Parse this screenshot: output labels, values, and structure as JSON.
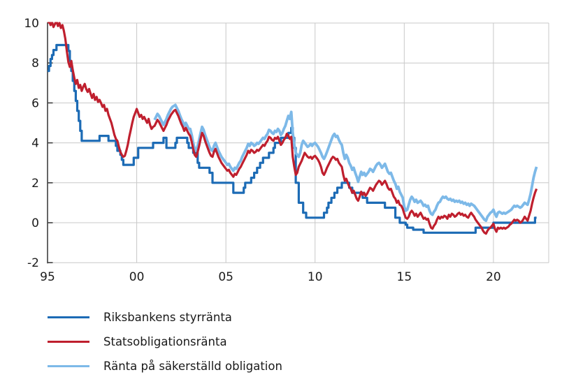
{
  "chart_data": {
    "type": "line",
    "title": "",
    "xlabel": "",
    "ylabel": "",
    "grid": true,
    "legend_position": "below-left",
    "background_color": "#ffffff",
    "grid_color": "#c8c8c8",
    "axis_color": "#404040",
    "label_color": "#1c1c1c",
    "ylim": [
      -2,
      10
    ],
    "xlim_years": [
      1995,
      2023.1
    ],
    "y_axis": {
      "ticks": [
        10,
        8,
        6,
        4,
        2,
        0,
        -2
      ],
      "tick_labels": [
        "10",
        "8",
        "6",
        "4",
        "2",
        "0",
        "-2"
      ]
    },
    "x_axis": {
      "tick_years": [
        1995,
        2000,
        2005,
        2010,
        2015,
        2020
      ],
      "tick_labels": [
        "95",
        "00",
        "05",
        "10",
        "15",
        "20"
      ],
      "grid_years": [
        2000,
        2005,
        2010,
        2015,
        2020
      ]
    },
    "x_unit": "year, monthly data points",
    "series": [
      {
        "name": "Riksbankens styrränta",
        "color": "#1c6bb5",
        "style": "step",
        "line_width": 3.2,
        "start_year": 1995.0,
        "step_years": 0.0833333,
        "values": [
          7.6,
          7.85,
          8.2,
          8.4,
          8.65,
          8.65,
          8.9,
          8.9,
          8.9,
          8.9,
          8.9,
          8.9,
          8.9,
          8.9,
          8.6,
          8.1,
          7.6,
          7.1,
          6.6,
          6.1,
          5.6,
          5.1,
          4.6,
          4.1,
          4.1,
          4.1,
          4.1,
          4.1,
          4.1,
          4.1,
          4.1,
          4.1,
          4.1,
          4.1,
          4.1,
          4.35,
          4.35,
          4.35,
          4.35,
          4.35,
          4.35,
          4.1,
          4.1,
          4.1,
          4.1,
          4.1,
          3.85,
          3.6,
          3.6,
          3.4,
          3.15,
          2.9,
          2.9,
          2.9,
          2.9,
          2.9,
          2.9,
          2.9,
          3.25,
          3.25,
          3.25,
          3.75,
          3.75,
          3.75,
          3.75,
          3.75,
          3.75,
          3.75,
          3.75,
          3.75,
          3.75,
          4.0,
          4.0,
          4.0,
          4.0,
          4.0,
          4.0,
          4.0,
          4.25,
          4.25,
          3.75,
          3.75,
          3.75,
          3.75,
          3.75,
          3.75,
          4.0,
          4.25,
          4.25,
          4.25,
          4.25,
          4.25,
          4.25,
          4.25,
          4.0,
          3.75,
          3.75,
          3.75,
          3.5,
          3.5,
          3.5,
          3.0,
          2.75,
          2.75,
          2.75,
          2.75,
          2.75,
          2.75,
          2.75,
          2.5,
          2.5,
          2.0,
          2.0,
          2.0,
          2.0,
          2.0,
          2.0,
          2.0,
          2.0,
          2.0,
          2.0,
          2.0,
          2.0,
          2.0,
          2.0,
          1.5,
          1.5,
          1.5,
          1.5,
          1.5,
          1.5,
          1.5,
          1.75,
          2.0,
          2.0,
          2.0,
          2.0,
          2.25,
          2.25,
          2.5,
          2.5,
          2.75,
          2.75,
          3.0,
          3.0,
          3.25,
          3.25,
          3.25,
          3.25,
          3.5,
          3.5,
          3.5,
          3.75,
          4.0,
          4.0,
          4.0,
          4.0,
          4.25,
          4.25,
          4.25,
          4.25,
          4.25,
          4.5,
          4.5,
          4.75,
          4.25,
          3.75,
          2.0,
          2.0,
          1.0,
          1.0,
          1.0,
          0.5,
          0.5,
          0.25,
          0.25,
          0.25,
          0.25,
          0.25,
          0.25,
          0.25,
          0.25,
          0.25,
          0.25,
          0.25,
          0.25,
          0.5,
          0.5,
          0.75,
          1.0,
          1.0,
          1.25,
          1.25,
          1.5,
          1.5,
          1.75,
          1.75,
          1.75,
          2.0,
          2.0,
          2.0,
          2.0,
          2.0,
          1.75,
          1.75,
          1.5,
          1.5,
          1.5,
          1.5,
          1.5,
          1.5,
          1.5,
          1.25,
          1.25,
          1.25,
          1.0,
          1.0,
          1.0,
          1.0,
          1.0,
          1.0,
          1.0,
          1.0,
          1.0,
          1.0,
          1.0,
          1.0,
          0.75,
          0.75,
          0.75,
          0.75,
          0.75,
          0.75,
          0.75,
          0.25,
          0.25,
          0.25,
          0.0,
          0.0,
          0.0,
          0.0,
          -0.1,
          -0.25,
          -0.25,
          -0.25,
          -0.25,
          -0.35,
          -0.35,
          -0.35,
          -0.35,
          -0.35,
          -0.35,
          -0.35,
          -0.5,
          -0.5,
          -0.5,
          -0.5,
          -0.5,
          -0.5,
          -0.5,
          -0.5,
          -0.5,
          -0.5,
          -0.5,
          -0.5,
          -0.5,
          -0.5,
          -0.5,
          -0.5,
          -0.5,
          -0.5,
          -0.5,
          -0.5,
          -0.5,
          -0.5,
          -0.5,
          -0.5,
          -0.5,
          -0.5,
          -0.5,
          -0.5,
          -0.5,
          -0.5,
          -0.5,
          -0.5,
          -0.5,
          -0.5,
          -0.5,
          -0.25,
          -0.25,
          -0.25,
          -0.25,
          -0.25,
          -0.25,
          -0.25,
          -0.25,
          -0.25,
          -0.25,
          -0.25,
          -0.25,
          0.0,
          0.0,
          0.0,
          0.0,
          0.0,
          0.0,
          0.0,
          0.0,
          0.0,
          0.0,
          0.0,
          0.0,
          0.0,
          0.0,
          0.0,
          0.0,
          0.0,
          0.0,
          0.0,
          0.0,
          0.0,
          0.0,
          0.0,
          0.0,
          0.0,
          0.0,
          0.0,
          0.0,
          0.25,
          0.25
        ]
      },
      {
        "name": "Statsobligationsränta",
        "color": "#bf1f2e",
        "style": "line",
        "line_width": 3.2,
        "start_year": 1995.0,
        "step_years": 0.0833333,
        "values": [
          10.0,
          10.15,
          9.9,
          10.05,
          9.8,
          9.95,
          10.1,
          9.85,
          10.0,
          9.75,
          9.9,
          9.6,
          9.2,
          8.6,
          8.05,
          7.8,
          8.1,
          7.65,
          7.25,
          6.95,
          7.15,
          6.75,
          6.9,
          6.6,
          6.8,
          6.95,
          6.7,
          6.55,
          6.7,
          6.45,
          6.25,
          6.45,
          6.15,
          6.3,
          6.05,
          6.15,
          6.0,
          5.8,
          5.9,
          5.6,
          5.7,
          5.4,
          5.2,
          5.0,
          4.7,
          4.4,
          4.2,
          4.1,
          3.8,
          3.55,
          3.4,
          3.3,
          3.35,
          3.6,
          3.9,
          4.3,
          4.65,
          5.0,
          5.3,
          5.5,
          5.7,
          5.5,
          5.3,
          5.4,
          5.2,
          5.3,
          5.15,
          5.0,
          5.2,
          4.9,
          4.7,
          4.8,
          4.85,
          5.0,
          5.15,
          5.05,
          4.9,
          4.75,
          4.6,
          4.75,
          4.9,
          5.1,
          5.25,
          5.4,
          5.5,
          5.6,
          5.65,
          5.5,
          5.35,
          5.15,
          4.95,
          4.8,
          4.6,
          4.75,
          4.6,
          4.45,
          4.35,
          4.05,
          3.7,
          3.4,
          3.3,
          3.55,
          3.85,
          4.2,
          4.5,
          4.35,
          4.1,
          3.9,
          3.7,
          3.5,
          3.35,
          3.3,
          3.55,
          3.7,
          3.5,
          3.3,
          3.15,
          3.0,
          2.9,
          2.8,
          2.7,
          2.6,
          2.65,
          2.5,
          2.4,
          2.3,
          2.45,
          2.4,
          2.55,
          2.7,
          2.8,
          2.95,
          3.1,
          3.25,
          3.4,
          3.6,
          3.5,
          3.65,
          3.6,
          3.5,
          3.55,
          3.65,
          3.6,
          3.7,
          3.8,
          3.9,
          3.85,
          4.0,
          4.1,
          4.3,
          4.25,
          4.15,
          4.1,
          4.25,
          4.2,
          4.3,
          4.1,
          3.9,
          4.0,
          4.15,
          4.25,
          4.45,
          4.35,
          4.2,
          4.3,
          3.3,
          2.8,
          2.4,
          2.5,
          2.8,
          2.95,
          3.1,
          3.3,
          3.5,
          3.4,
          3.3,
          3.25,
          3.3,
          3.2,
          3.3,
          3.35,
          3.25,
          3.15,
          3.0,
          2.8,
          2.5,
          2.4,
          2.55,
          2.75,
          2.9,
          3.05,
          3.2,
          3.3,
          3.25,
          3.15,
          3.2,
          3.0,
          2.9,
          2.8,
          2.4,
          2.1,
          2.2,
          2.0,
          1.8,
          1.7,
          1.5,
          1.6,
          1.4,
          1.2,
          1.1,
          1.3,
          1.55,
          1.4,
          1.5,
          1.35,
          1.45,
          1.6,
          1.75,
          1.7,
          1.6,
          1.75,
          1.9,
          2.0,
          2.1,
          2.05,
          1.9,
          2.0,
          2.1,
          1.95,
          1.75,
          1.65,
          1.7,
          1.5,
          1.3,
          1.2,
          1.0,
          1.1,
          0.9,
          0.85,
          0.7,
          0.45,
          0.25,
          0.2,
          0.3,
          0.5,
          0.6,
          0.5,
          0.35,
          0.45,
          0.3,
          0.4,
          0.5,
          0.35,
          0.2,
          0.25,
          0.15,
          0.2,
          -0.05,
          -0.25,
          -0.3,
          -0.15,
          -0.05,
          0.15,
          0.3,
          0.2,
          0.3,
          0.25,
          0.35,
          0.3,
          0.2,
          0.4,
          0.3,
          0.45,
          0.4,
          0.3,
          0.35,
          0.45,
          0.5,
          0.4,
          0.45,
          0.35,
          0.4,
          0.3,
          0.25,
          0.4,
          0.5,
          0.4,
          0.3,
          0.15,
          0.05,
          -0.05,
          -0.15,
          -0.25,
          -0.4,
          -0.5,
          -0.55,
          -0.4,
          -0.3,
          -0.25,
          -0.15,
          -0.05,
          -0.3,
          -0.45,
          -0.25,
          -0.3,
          -0.25,
          -0.3,
          -0.25,
          -0.3,
          -0.25,
          -0.2,
          -0.1,
          -0.05,
          0.05,
          0.15,
          0.1,
          0.15,
          0.1,
          0.0,
          0.05,
          0.15,
          0.3,
          0.2,
          0.1,
          0.35,
          0.6,
          0.95,
          1.25,
          1.5,
          1.7
        ]
      },
      {
        "name": "Ränta på säkerställd obligation",
        "color": "#7db9e8",
        "style": "line",
        "line_width": 3.8,
        "start_year": 2001.0,
        "step_years": 0.0833333,
        "values": [
          5.15,
          5.3,
          5.45,
          5.35,
          5.2,
          5.05,
          4.9,
          5.05,
          5.2,
          5.4,
          5.55,
          5.7,
          5.8,
          5.85,
          5.9,
          5.75,
          5.6,
          5.4,
          5.2,
          5.05,
          4.85,
          5.0,
          4.85,
          4.7,
          4.7,
          4.4,
          4.0,
          3.7,
          3.6,
          3.85,
          4.15,
          4.5,
          4.8,
          4.65,
          4.4,
          4.2,
          4.0,
          3.8,
          3.65,
          3.6,
          3.85,
          4.0,
          3.8,
          3.6,
          3.45,
          3.3,
          3.2,
          3.1,
          3.0,
          2.9,
          2.95,
          2.8,
          2.7,
          2.6,
          2.75,
          2.7,
          2.85,
          3.0,
          3.1,
          3.3,
          3.45,
          3.6,
          3.75,
          3.95,
          3.85,
          4.0,
          3.95,
          3.85,
          3.9,
          4.0,
          3.95,
          4.05,
          4.15,
          4.25,
          4.2,
          4.35,
          4.45,
          4.65,
          4.6,
          4.5,
          4.45,
          4.6,
          4.55,
          4.7,
          4.6,
          4.4,
          4.5,
          4.7,
          4.85,
          5.1,
          5.35,
          5.2,
          5.55,
          4.5,
          3.9,
          3.5,
          3.4,
          3.3,
          3.5,
          3.9,
          4.1,
          4.0,
          3.9,
          3.8,
          3.85,
          3.95,
          3.85,
          3.95,
          4.0,
          3.9,
          3.8,
          3.65,
          3.5,
          3.3,
          3.2,
          3.35,
          3.55,
          3.75,
          3.95,
          4.15,
          4.35,
          4.45,
          4.3,
          4.35,
          4.15,
          4.0,
          3.9,
          3.5,
          3.2,
          3.4,
          3.25,
          3.0,
          2.85,
          2.65,
          2.75,
          2.5,
          2.3,
          2.05,
          2.3,
          2.55,
          2.4,
          2.5,
          2.35,
          2.45,
          2.55,
          2.7,
          2.65,
          2.55,
          2.7,
          2.85,
          2.95,
          3.0,
          2.9,
          2.75,
          2.85,
          2.95,
          2.75,
          2.55,
          2.45,
          2.5,
          2.3,
          2.1,
          1.95,
          1.7,
          1.8,
          1.55,
          1.4,
          1.25,
          0.8,
          0.6,
          0.65,
          0.9,
          1.15,
          1.3,
          1.2,
          1.05,
          1.15,
          1.0,
          1.05,
          1.1,
          1.0,
          0.85,
          0.9,
          0.8,
          0.85,
          0.6,
          0.45,
          0.4,
          0.55,
          0.65,
          0.85,
          1.0,
          1.05,
          1.2,
          1.3,
          1.25,
          1.3,
          1.2,
          1.15,
          1.2,
          1.1,
          1.15,
          1.05,
          1.1,
          1.05,
          1.1,
          1.0,
          1.05,
          0.95,
          1.0,
          0.9,
          0.95,
          0.85,
          0.95,
          0.9,
          0.85,
          0.75,
          0.65,
          0.55,
          0.45,
          0.35,
          0.25,
          0.15,
          0.1,
          0.3,
          0.4,
          0.5,
          0.55,
          0.65,
          0.45,
          0.3,
          0.5,
          0.55,
          0.5,
          0.45,
          0.5,
          0.45,
          0.5,
          0.55,
          0.6,
          0.65,
          0.75,
          0.85,
          0.8,
          0.85,
          0.8,
          0.75,
          0.8,
          0.9,
          1.0,
          0.95,
          0.9,
          1.15,
          1.45,
          1.85,
          2.25,
          2.55,
          2.8
        ]
      }
    ]
  },
  "legend": {
    "items": [
      {
        "label": "Riksbankens styrränta"
      },
      {
        "label": "Statsobligationsränta"
      },
      {
        "label": "Ränta på säkerställd obligation"
      }
    ]
  }
}
